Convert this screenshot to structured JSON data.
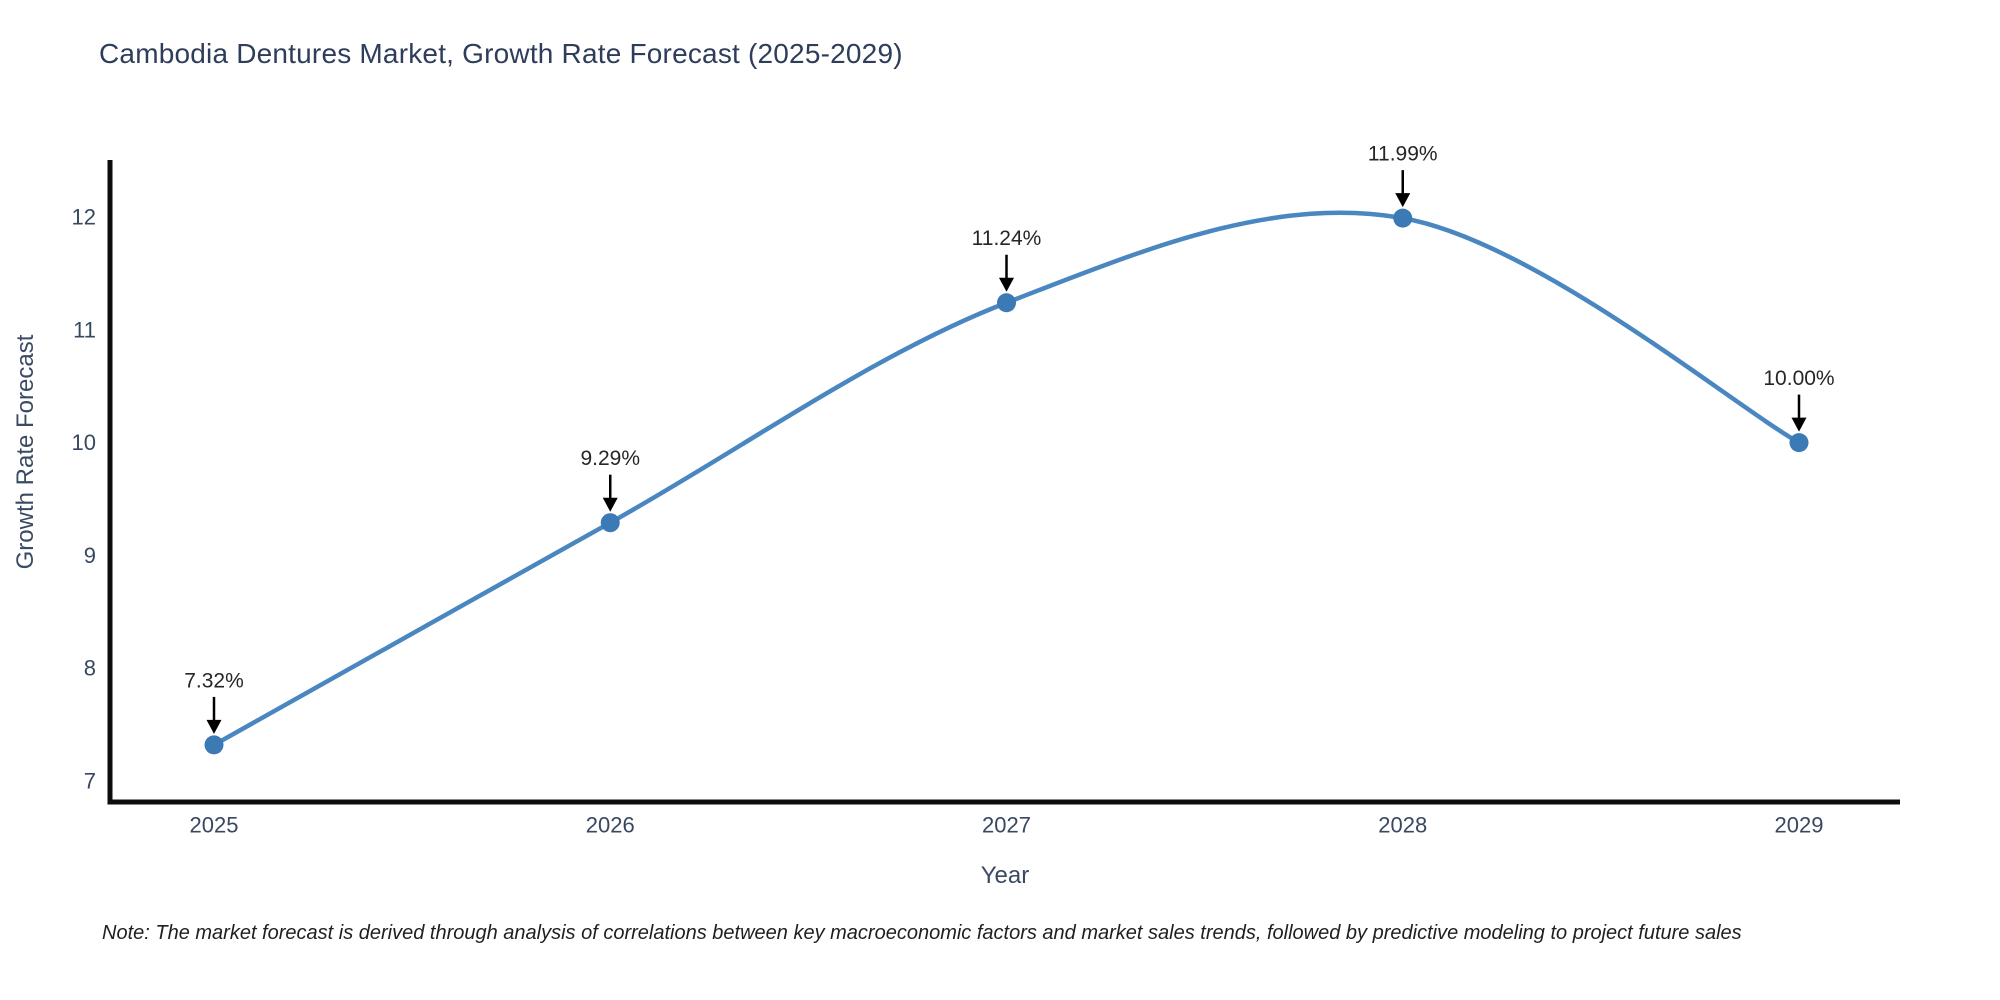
{
  "title": "Cambodia Dentures Market, Growth Rate Forecast (2025-2029)",
  "footnote": "Note: The market forecast is derived through analysis of correlations between key macroeconomic factors and market sales trends, followed by predictive modeling to project future sales",
  "chart_data": {
    "type": "line",
    "title": "Cambodia Dentures Market, Growth Rate Forecast (2025-2029)",
    "xlabel": "Year",
    "ylabel": "Growth Rate Forecast",
    "categories": [
      "2025",
      "2026",
      "2027",
      "2028",
      "2029"
    ],
    "values": [
      7.32,
      9.29,
      11.24,
      11.99,
      10.0
    ],
    "point_labels": [
      "7.32%",
      "9.29%",
      "11.24%",
      "11.99%",
      "10.00%"
    ],
    "y_ticks": [
      7,
      8,
      9,
      10,
      11,
      12
    ],
    "ylim": [
      6.8,
      12.5
    ],
    "line_shape": "spline",
    "grid": false,
    "legend": "none",
    "annotation_style": "black-arrow-above-point",
    "colors": {
      "line": "#4a86c0",
      "marker": "#3c7ab5",
      "axis": "#0d0d0f",
      "tick_label": "#384860",
      "annotation_text": "#262626",
      "arrow": "#000000"
    }
  }
}
